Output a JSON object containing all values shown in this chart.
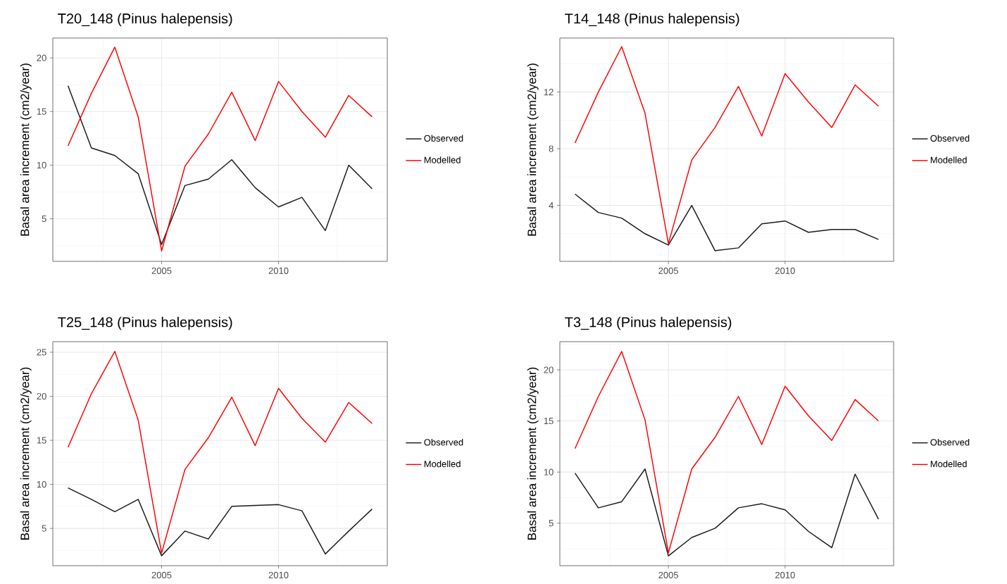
{
  "chart_data": [
    {
      "type": "line",
      "title": "T20_148 (Pinus halepensis)",
      "ylabel": "Basal area increment (cm2/year)",
      "x": [
        2001,
        2002,
        2003,
        2004,
        2005,
        2006,
        2007,
        2008,
        2009,
        2010,
        2011,
        2012,
        2013,
        2014
      ],
      "xlim": [
        2000.35,
        2014.65
      ],
      "xticks": [
        2005,
        2010
      ],
      "ylim": [
        1.03,
        21.85
      ],
      "yticks": [
        5,
        10,
        15,
        20
      ],
      "grid": true,
      "legend": "right",
      "series": [
        {
          "name": "Observed",
          "color": "#1a1a1a",
          "values": [
            17.4,
            11.6,
            10.9,
            9.2,
            2.6,
            8.1,
            8.7,
            10.5,
            7.9,
            6.1,
            7.0,
            3.9,
            10.0,
            7.8
          ]
        },
        {
          "name": "Modelled",
          "color": "#ff0000",
          "values": [
            11.8,
            16.7,
            21.0,
            14.5,
            2.0,
            9.9,
            12.9,
            16.8,
            12.3,
            17.8,
            15.0,
            12.6,
            16.5,
            14.5
          ]
        }
      ]
    },
    {
      "type": "line",
      "title": "T14_148 (Pinus halepensis)",
      "ylabel": "Basal area increment (cm2/year)",
      "x": [
        2001,
        2002,
        2003,
        2004,
        2005,
        2006,
        2007,
        2008,
        2009,
        2010,
        2011,
        2012,
        2013,
        2014
      ],
      "xlim": [
        2000.35,
        2014.65
      ],
      "xticks": [
        2005,
        2010
      ],
      "ylim": [
        0.05,
        15.81
      ],
      "yticks": [
        4,
        8,
        12
      ],
      "grid": true,
      "legend": "right",
      "series": [
        {
          "name": "Observed",
          "color": "#1a1a1a",
          "values": [
            4.8,
            3.5,
            3.1,
            2.0,
            1.2,
            4.0,
            0.8,
            1.0,
            2.7,
            2.9,
            2.1,
            2.3,
            2.3,
            1.6
          ]
        },
        {
          "name": "Modelled",
          "color": "#ff0000",
          "values": [
            8.4,
            12.0,
            15.2,
            10.5,
            1.3,
            7.2,
            9.5,
            12.4,
            8.9,
            13.3,
            11.3,
            9.5,
            12.5,
            11.0
          ]
        }
      ]
    },
    {
      "type": "line",
      "title": "T25_148 (Pinus halepensis)",
      "ylabel": "Basal area increment (cm2/year)",
      "x": [
        2001,
        2002,
        2003,
        2004,
        2005,
        2006,
        2007,
        2008,
        2009,
        2010,
        2011,
        2012,
        2013,
        2014
      ],
      "xlim": [
        2000.35,
        2014.65
      ],
      "xticks": [
        2005,
        2010
      ],
      "ylim": [
        0.77,
        26.2
      ],
      "yticks": [
        5,
        10,
        15,
        20,
        25
      ],
      "grid": true,
      "legend": "right",
      "series": [
        {
          "name": "Observed",
          "color": "#1a1a1a",
          "values": [
            9.6,
            8.3,
            6.9,
            8.3,
            1.9,
            4.7,
            3.8,
            7.5,
            7.6,
            7.7,
            7.0,
            2.1,
            4.7,
            7.2
          ]
        },
        {
          "name": "Modelled",
          "color": "#ff0000",
          "values": [
            14.2,
            20.3,
            25.1,
            17.3,
            2.2,
            11.7,
            15.3,
            19.9,
            14.4,
            20.9,
            17.5,
            14.8,
            19.3,
            16.9
          ]
        }
      ]
    },
    {
      "type": "line",
      "title": "T3_148 (Pinus halepensis)",
      "ylabel": "Basal area increment (cm2/year)",
      "x": [
        2001,
        2002,
        2003,
        2004,
        2005,
        2006,
        2007,
        2008,
        2009,
        2010,
        2011,
        2012,
        2013,
        2014
      ],
      "xlim": [
        2000.35,
        2014.65
      ],
      "xticks": [
        2005,
        2010
      ],
      "ylim": [
        0.84,
        22.76
      ],
      "yticks": [
        5,
        10,
        15,
        20
      ],
      "grid": true,
      "legend": "right",
      "series": [
        {
          "name": "Observed",
          "color": "#1a1a1a",
          "values": [
            9.9,
            6.5,
            7.1,
            10.3,
            1.8,
            3.6,
            4.5,
            6.5,
            6.9,
            6.3,
            4.2,
            2.6,
            9.8,
            5.4
          ]
        },
        {
          "name": "Modelled",
          "color": "#ff0000",
          "values": [
            12.3,
            17.4,
            21.8,
            15.1,
            2.1,
            10.3,
            13.4,
            17.4,
            12.7,
            18.4,
            15.5,
            13.1,
            17.1,
            15.0
          ]
        }
      ]
    }
  ]
}
